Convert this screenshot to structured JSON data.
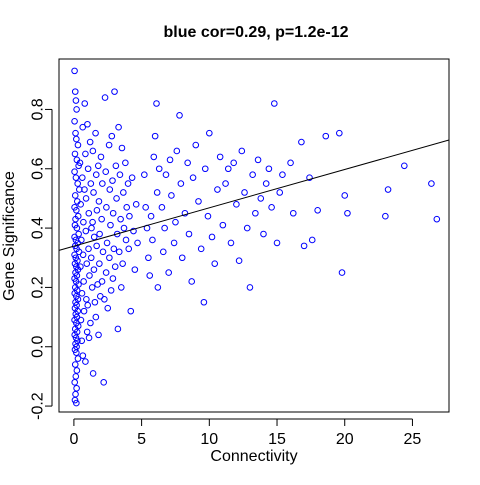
{
  "chart_data": {
    "type": "scatter",
    "title": "blue cor=0.29, p=1.2e-12",
    "xlabel": "Connectivity",
    "ylabel": "Gene Significance",
    "xlim": [
      -1.1,
      27.7
    ],
    "ylim": [
      -0.22,
      0.97
    ],
    "xticks": [
      0,
      5,
      10,
      15,
      20,
      25
    ],
    "xtick_labels": [
      "0",
      "5",
      "10",
      "15",
      "20",
      "25"
    ],
    "yticks": [
      -0.2,
      0.0,
      0.2,
      0.4,
      0.6,
      0.8
    ],
    "ytick_labels": [
      "-0.2",
      "0.0",
      "0.2",
      "0.4",
      "0.6",
      "0.8"
    ],
    "grid": false,
    "marker": "open-circle",
    "point_color": "#0000ff",
    "line_color": "#000000",
    "regression_line": {
      "x": [
        -1.1,
        27.7
      ],
      "y": [
        0.325,
        0.697
      ]
    },
    "points": [
      [
        0.05,
        0.93
      ],
      [
        0.1,
        0.86
      ],
      [
        0.15,
        0.83
      ],
      [
        0.2,
        0.8
      ],
      [
        0.05,
        0.76
      ],
      [
        0.12,
        0.72
      ],
      [
        0.18,
        0.7
      ],
      [
        0.3,
        0.68
      ],
      [
        0.08,
        0.65
      ],
      [
        0.22,
        0.63
      ],
      [
        0.35,
        0.61
      ],
      [
        0.05,
        0.59
      ],
      [
        0.15,
        0.57
      ],
      [
        0.28,
        0.55
      ],
      [
        0.4,
        0.53
      ],
      [
        0.1,
        0.51
      ],
      [
        0.25,
        0.49
      ],
      [
        0.05,
        0.47
      ],
      [
        0.18,
        0.46
      ],
      [
        0.32,
        0.44
      ],
      [
        0.12,
        0.43
      ],
      [
        0.08,
        0.41
      ],
      [
        0.22,
        0.4
      ],
      [
        0.35,
        0.38
      ],
      [
        0.05,
        0.37
      ],
      [
        0.15,
        0.36
      ],
      [
        0.28,
        0.35
      ],
      [
        0.1,
        0.34
      ],
      [
        0.2,
        0.33
      ],
      [
        0.38,
        0.32
      ],
      [
        0.05,
        0.31
      ],
      [
        0.14,
        0.3
      ],
      [
        0.26,
        0.29
      ],
      [
        0.08,
        0.28
      ],
      [
        0.18,
        0.27
      ],
      [
        0.3,
        0.26
      ],
      [
        0.12,
        0.25
      ],
      [
        0.22,
        0.24
      ],
      [
        0.05,
        0.23
      ],
      [
        0.16,
        0.22
      ],
      [
        0.34,
        0.21
      ],
      [
        0.1,
        0.2
      ],
      [
        0.24,
        0.19
      ],
      [
        0.06,
        0.18
      ],
      [
        0.18,
        0.17
      ],
      [
        0.3,
        0.16
      ],
      [
        0.12,
        0.15
      ],
      [
        0.2,
        0.14
      ],
      [
        0.08,
        0.13
      ],
      [
        0.28,
        0.12
      ],
      [
        0.14,
        0.11
      ],
      [
        0.22,
        0.1
      ],
      [
        0.05,
        0.09
      ],
      [
        0.18,
        0.08
      ],
      [
        0.32,
        0.07
      ],
      [
        0.1,
        0.06
      ],
      [
        0.24,
        0.05
      ],
      [
        0.06,
        0.04
      ],
      [
        0.16,
        0.03
      ],
      [
        0.26,
        0.02
      ],
      [
        0.12,
        0.01
      ],
      [
        0.2,
        0.0
      ],
      [
        0.08,
        -0.01
      ],
      [
        0.18,
        -0.02
      ],
      [
        0.3,
        -0.04
      ],
      [
        0.1,
        -0.06
      ],
      [
        0.22,
        -0.08
      ],
      [
        0.14,
        -0.1
      ],
      [
        0.06,
        -0.12
      ],
      [
        0.2,
        -0.14
      ],
      [
        0.12,
        -0.16
      ],
      [
        0.08,
        -0.18
      ],
      [
        0.18,
        -0.19
      ],
      [
        0.45,
        0.62
      ],
      [
        0.5,
        0.48
      ],
      [
        0.55,
        0.36
      ],
      [
        0.48,
        0.27
      ],
      [
        0.6,
        0.18
      ],
      [
        0.52,
        0.09
      ],
      [
        0.58,
        0.02
      ],
      [
        0.65,
        0.74
      ],
      [
        0.62,
        0.57
      ],
      [
        0.7,
        0.42
      ],
      [
        0.68,
        0.31
      ],
      [
        0.72,
        0.22
      ],
      [
        0.75,
        0.12
      ],
      [
        0.66,
        -0.03
      ],
      [
        0.8,
        0.82
      ],
      [
        0.85,
        0.65
      ],
      [
        0.9,
        0.5
      ],
      [
        0.88,
        0.39
      ],
      [
        0.95,
        0.28
      ],
      [
        0.92,
        0.16
      ],
      [
        0.98,
        0.05
      ],
      [
        0.85,
        -0.05
      ],
      [
        1.0,
        0.75
      ],
      [
        1.05,
        0.6
      ],
      [
        1.1,
        0.45
      ],
      [
        1.08,
        0.33
      ],
      [
        1.15,
        0.24
      ],
      [
        1.02,
        0.14
      ],
      [
        1.12,
        0.03
      ],
      [
        1.2,
        0.69
      ],
      [
        1.25,
        0.55
      ],
      [
        1.3,
        0.4
      ],
      [
        1.28,
        0.3
      ],
      [
        1.35,
        0.2
      ],
      [
        1.22,
        0.08
      ],
      [
        1.4,
        0.66
      ],
      [
        1.45,
        0.52
      ],
      [
        1.5,
        0.37
      ],
      [
        1.48,
        0.26
      ],
      [
        1.55,
        0.15
      ],
      [
        1.42,
        -0.09
      ],
      [
        1.6,
        0.72
      ],
      [
        1.65,
        0.58
      ],
      [
        1.7,
        0.46
      ],
      [
        1.68,
        0.34
      ],
      [
        1.75,
        0.21
      ],
      [
        1.62,
        0.1
      ],
      [
        1.8,
        0.61
      ],
      [
        1.85,
        0.49
      ],
      [
        1.9,
        0.38
      ],
      [
        1.88,
        0.28
      ],
      [
        1.95,
        0.17
      ],
      [
        1.82,
        0.04
      ],
      [
        2.0,
        0.64
      ],
      [
        2.1,
        0.55
      ],
      [
        2.05,
        0.43
      ],
      [
        2.15,
        0.32
      ],
      [
        2.08,
        0.22
      ],
      [
        2.2,
        -0.12
      ],
      [
        2.3,
        0.84
      ],
      [
        2.35,
        0.59
      ],
      [
        2.4,
        0.47
      ],
      [
        2.45,
        0.35
      ],
      [
        2.38,
        0.25
      ],
      [
        2.5,
        0.13
      ],
      [
        2.6,
        0.68
      ],
      [
        2.65,
        0.53
      ],
      [
        2.7,
        0.41
      ],
      [
        2.62,
        0.3
      ],
      [
        2.75,
        0.19
      ],
      [
        2.8,
        0.71
      ],
      [
        2.85,
        0.56
      ],
      [
        2.9,
        0.45
      ],
      [
        2.95,
        0.33
      ],
      [
        2.88,
        0.23
      ],
      [
        3.0,
        0.86
      ],
      [
        3.1,
        0.61
      ],
      [
        3.15,
        0.5
      ],
      [
        3.2,
        0.38
      ],
      [
        3.05,
        0.27
      ],
      [
        3.25,
        0.06
      ],
      [
        3.3,
        0.74
      ],
      [
        3.4,
        0.58
      ],
      [
        3.45,
        0.43
      ],
      [
        3.35,
        0.32
      ],
      [
        3.5,
        0.2
      ],
      [
        3.55,
        0.67
      ],
      [
        3.65,
        0.52
      ],
      [
        3.7,
        0.4
      ],
      [
        3.6,
        0.28
      ],
      [
        3.8,
        0.62
      ],
      [
        3.9,
        0.47
      ],
      [
        3.85,
        0.36
      ],
      [
        4.0,
        0.55
      ],
      [
        4.1,
        0.44
      ],
      [
        4.05,
        0.33
      ],
      [
        4.2,
        0.12
      ],
      [
        4.3,
        0.57
      ],
      [
        4.4,
        0.39
      ],
      [
        4.5,
        0.26
      ],
      [
        4.6,
        0.48
      ],
      [
        4.7,
        0.35
      ],
      [
        2.25,
        0.16
      ],
      [
        1.38,
        0.42
      ],
      [
        0.78,
        0.53
      ],
      [
        5.2,
        0.58
      ],
      [
        5.3,
        0.47
      ],
      [
        5.4,
        0.4
      ],
      [
        5.5,
        0.3
      ],
      [
        5.6,
        0.24
      ],
      [
        5.7,
        0.44
      ],
      [
        5.8,
        0.36
      ],
      [
        5.9,
        0.64
      ],
      [
        6.0,
        0.71
      ],
      [
        6.1,
        0.82
      ],
      [
        6.15,
        0.52
      ],
      [
        6.2,
        0.2
      ],
      [
        6.3,
        0.6
      ],
      [
        6.5,
        0.47
      ],
      [
        6.6,
        0.32
      ],
      [
        6.7,
        0.4
      ],
      [
        6.8,
        0.58
      ],
      [
        7.0,
        0.25
      ],
      [
        7.1,
        0.63
      ],
      [
        7.2,
        0.51
      ],
      [
        7.4,
        0.35
      ],
      [
        7.5,
        0.42
      ],
      [
        7.6,
        0.66
      ],
      [
        7.8,
        0.78
      ],
      [
        7.9,
        0.55
      ],
      [
        8.0,
        0.3
      ],
      [
        8.2,
        0.45
      ],
      [
        8.4,
        0.62
      ],
      [
        8.5,
        0.38
      ],
      [
        8.7,
        0.22
      ],
      [
        8.8,
        0.57
      ],
      [
        9.0,
        0.68
      ],
      [
        9.2,
        0.49
      ],
      [
        9.4,
        0.33
      ],
      [
        9.6,
        0.15
      ],
      [
        9.7,
        0.6
      ],
      [
        9.9,
        0.44
      ],
      [
        10.0,
        0.72
      ],
      [
        10.2,
        0.37
      ],
      [
        10.4,
        0.28
      ],
      [
        10.6,
        0.53
      ],
      [
        10.8,
        0.64
      ],
      [
        11.0,
        0.41
      ],
      [
        11.2,
        0.55
      ],
      [
        11.4,
        0.6
      ],
      [
        11.6,
        0.35
      ],
      [
        11.8,
        0.62
      ],
      [
        12.0,
        0.48
      ],
      [
        12.2,
        0.29
      ],
      [
        12.4,
        0.66
      ],
      [
        12.6,
        0.52
      ],
      [
        12.8,
        0.4
      ],
      [
        13.0,
        0.2
      ],
      [
        13.2,
        0.58
      ],
      [
        13.4,
        0.45
      ],
      [
        13.6,
        0.63
      ],
      [
        13.8,
        0.5
      ],
      [
        14.0,
        0.38
      ],
      [
        14.2,
        0.55
      ],
      [
        14.4,
        0.6
      ],
      [
        14.6,
        0.47
      ],
      [
        14.8,
        0.82
      ],
      [
        15.0,
        0.35
      ],
      [
        15.2,
        0.52
      ],
      [
        15.4,
        0.58
      ],
      [
        16.0,
        0.62
      ],
      [
        16.2,
        0.45
      ],
      [
        16.8,
        0.69
      ],
      [
        17.0,
        0.34
      ],
      [
        17.4,
        0.57
      ],
      [
        17.6,
        0.36
      ],
      [
        18.0,
        0.46
      ],
      [
        18.6,
        0.71
      ],
      [
        19.6,
        0.72
      ],
      [
        19.8,
        0.25
      ],
      [
        20.0,
        0.51
      ],
      [
        20.2,
        0.45
      ],
      [
        23.0,
        0.44
      ],
      [
        23.2,
        0.53
      ],
      [
        24.4,
        0.61
      ],
      [
        26.4,
        0.55
      ],
      [
        26.8,
        0.43
      ]
    ]
  }
}
